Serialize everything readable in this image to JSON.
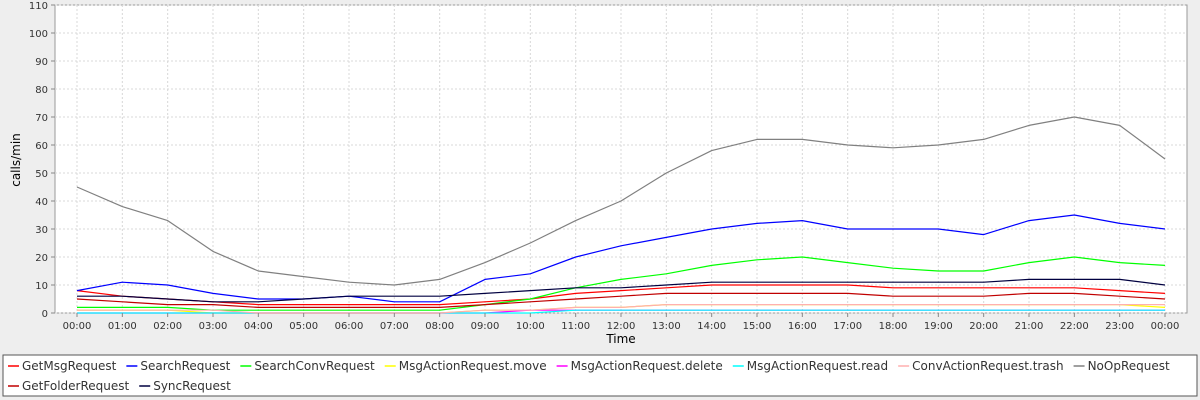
{
  "chart_data": {
    "type": "line",
    "title": "",
    "xlabel": "Time",
    "ylabel": "calls/min",
    "ylim": [
      0,
      110
    ],
    "yticks": [
      0,
      10,
      20,
      30,
      40,
      50,
      60,
      70,
      80,
      90,
      100,
      110
    ],
    "xlim": [
      0,
      24
    ],
    "xticks": [
      "00:00",
      "01:00",
      "02:00",
      "03:00",
      "04:00",
      "05:00",
      "06:00",
      "07:00",
      "08:00",
      "09:00",
      "10:00",
      "11:00",
      "12:00",
      "13:00",
      "14:00",
      "15:00",
      "16:00",
      "17:00",
      "18:00",
      "19:00",
      "20:00",
      "21:00",
      "22:00",
      "23:00",
      "00:00"
    ],
    "grid": true,
    "legend_placement": "bottom",
    "x": [
      "00:00",
      "01:00",
      "02:00",
      "03:00",
      "04:00",
      "05:00",
      "06:00",
      "07:00",
      "08:00",
      "09:00",
      "10:00",
      "11:00",
      "12:00",
      "13:00",
      "14:00",
      "15:00",
      "16:00",
      "17:00",
      "18:00",
      "19:00",
      "20:00",
      "21:00",
      "22:00",
      "23:00",
      "00:00"
    ],
    "series": [
      {
        "name": "GetMsgRequest",
        "color": "#ff0000",
        "values": [
          8,
          6,
          5,
          4,
          3,
          3,
          3,
          3,
          3,
          4,
          5,
          7,
          8,
          9,
          10,
          10,
          10,
          10,
          9,
          9,
          9,
          9,
          9,
          8,
          7
        ]
      },
      {
        "name": "SearchRequest",
        "color": "#0000ff",
        "values": [
          8,
          11,
          10,
          7,
          5,
          5,
          6,
          4,
          4,
          12,
          14,
          20,
          24,
          27,
          30,
          32,
          33,
          30,
          30,
          30,
          28,
          33,
          35,
          32,
          30
        ]
      },
      {
        "name": "SearchConvRequest",
        "color": "#00ff00",
        "values": [
          2,
          2,
          2,
          1,
          1,
          1,
          1,
          1,
          1,
          3,
          5,
          9,
          12,
          14,
          17,
          19,
          20,
          18,
          16,
          15,
          15,
          18,
          20,
          18,
          17
        ]
      },
      {
        "name": "MsgActionRequest.move",
        "color": "#ffff00",
        "values": [
          1,
          1,
          1,
          0,
          0,
          0,
          0,
          0,
          0,
          1,
          1,
          2,
          2,
          3,
          3,
          3,
          3,
          3,
          3,
          3,
          3,
          3,
          3,
          3,
          2
        ]
      },
      {
        "name": "MsgActionRequest.delete",
        "color": "#ff00ff",
        "values": [
          0,
          0,
          0,
          0,
          0,
          0,
          0,
          0,
          0,
          0,
          1,
          1,
          1,
          1,
          1,
          1,
          1,
          1,
          1,
          1,
          1,
          1,
          1,
          1,
          1
        ]
      },
      {
        "name": "MsgActionRequest.read",
        "color": "#00ffff",
        "values": [
          0,
          0,
          0,
          0,
          0,
          0,
          0,
          0,
          0,
          0,
          0,
          1,
          1,
          1,
          1,
          1,
          1,
          1,
          1,
          1,
          1,
          1,
          1,
          1,
          1
        ]
      },
      {
        "name": "ConvActionRequest.trash",
        "color": "#ffafaf",
        "values": [
          1,
          1,
          1,
          1,
          0,
          0,
          0,
          0,
          0,
          1,
          1,
          2,
          2,
          3,
          3,
          3,
          3,
          3,
          3,
          3,
          3,
          3,
          3,
          3,
          3
        ]
      },
      {
        "name": "NoOpRequest",
        "color": "#808080",
        "values": [
          45,
          38,
          33,
          22,
          15,
          13,
          11,
          10,
          12,
          18,
          25,
          33,
          40,
          50,
          58,
          62,
          62,
          60,
          59,
          60,
          62,
          67,
          70,
          67,
          55
        ]
      },
      {
        "name": "GetFolderRequest",
        "color": "#c00000",
        "values": [
          5,
          4,
          3,
          3,
          2,
          2,
          2,
          2,
          2,
          3,
          4,
          5,
          6,
          7,
          7,
          7,
          7,
          7,
          6,
          6,
          6,
          7,
          7,
          6,
          5
        ]
      },
      {
        "name": "SyncRequest",
        "color": "#000040",
        "values": [
          6,
          6,
          5,
          4,
          4,
          5,
          6,
          6,
          6,
          7,
          8,
          9,
          9,
          10,
          11,
          11,
          11,
          11,
          11,
          11,
          11,
          12,
          12,
          12,
          10
        ]
      }
    ]
  }
}
